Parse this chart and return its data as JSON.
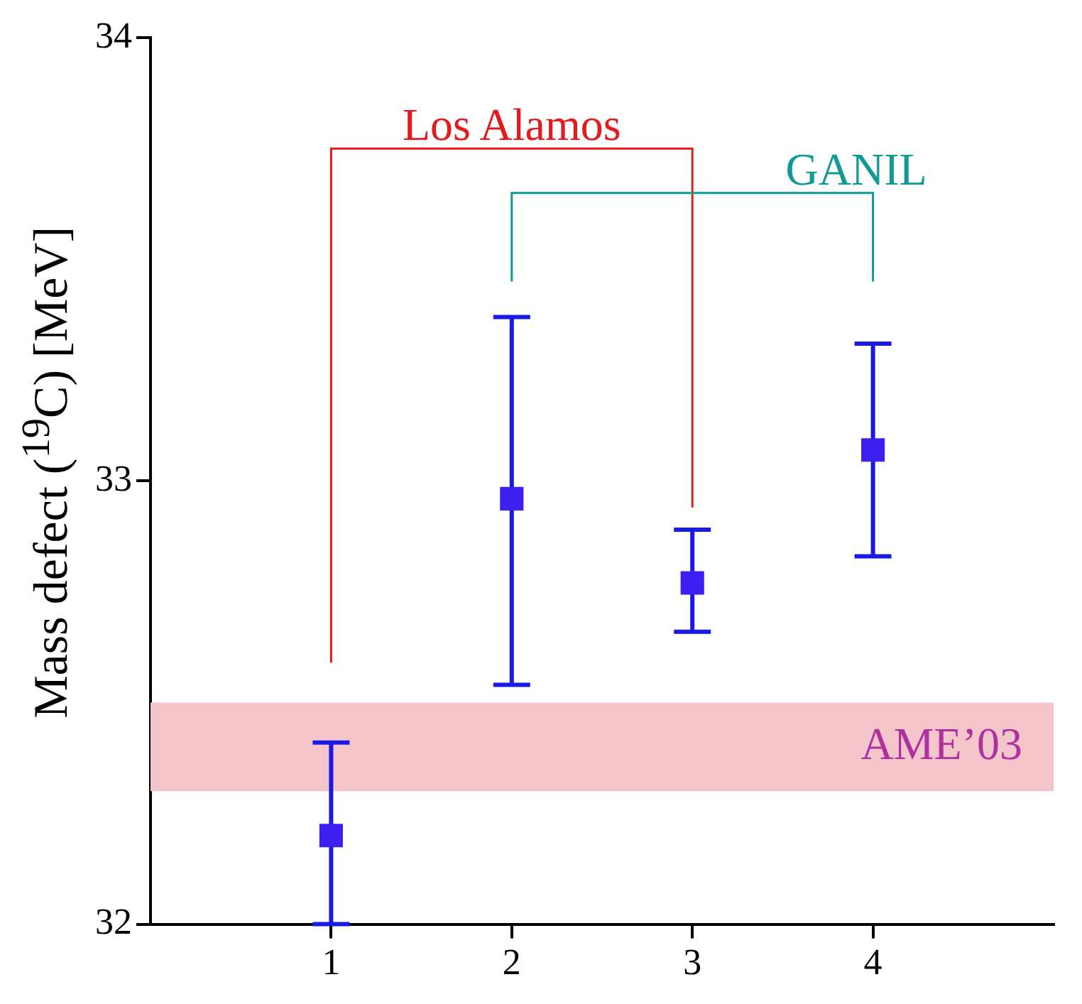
{
  "chart_data": {
    "type": "scatter",
    "ylabel": "Mass defect ($^{19}$C) [MeV]",
    "x": [
      1,
      2,
      3,
      4
    ],
    "series": [
      {
        "color": "#3d1ff0",
        "values": [
          32.2,
          32.96,
          32.77,
          33.07
        ],
        "errors": [
          [
            32.0,
            32.41
          ],
          [
            32.54,
            33.37
          ],
          [
            32.66,
            32.89
          ],
          [
            32.83,
            33.31
          ]
        ]
      }
    ],
    "marker": "square",
    "grid": false,
    "legend": false,
    "xlim": [
      0,
      5
    ],
    "xticks": [
      1,
      2,
      3,
      4
    ],
    "ylim": [
      32,
      34
    ],
    "yticks": [
      32,
      33,
      34
    ],
    "bands": [
      {
        "axis": "y",
        "from": 32.3,
        "to": 32.5,
        "label": "AME’03",
        "color": "#f4c6cc"
      }
    ],
    "annotations": [
      "Los Alamos",
      "GANIL"
    ]
  }
}
